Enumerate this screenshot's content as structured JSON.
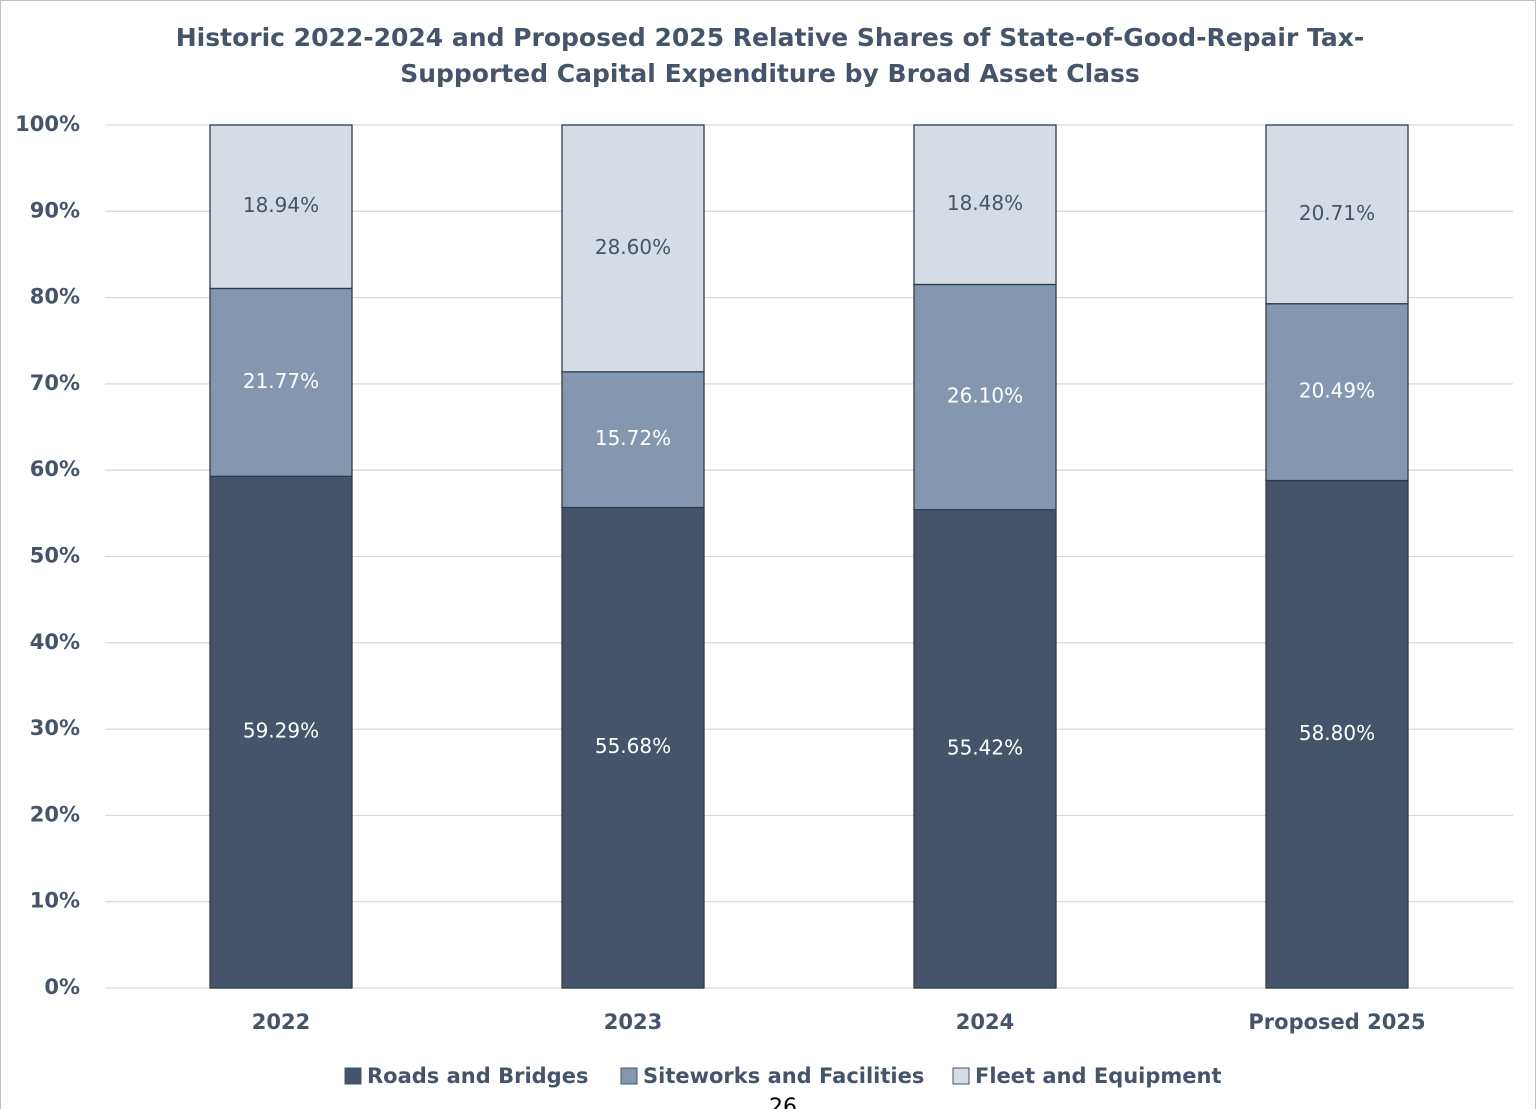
{
  "chart_data": {
    "type": "stacked_bar",
    "title": [
      "Historic 2022-2024 and Proposed 2025 Relative Shares of State-of-Good-Repair Tax-",
      "Supported Capital Expenditure by Broad Asset Class"
    ],
    "categories": [
      "2022",
      "2023",
      "2024",
      "Proposed 2025"
    ],
    "series": [
      {
        "name": "Roads and Bridges",
        "color": "#44546a",
        "label_color": "#ffffff",
        "values": [
          59.29,
          55.68,
          55.42,
          58.8
        ],
        "value_labels": [
          "59.29%",
          "55.68%",
          "55.42%",
          "58.80%"
        ]
      },
      {
        "name": "Siteworks and Facilities",
        "color": "#8497b0",
        "label_color": "#ffffff",
        "values": [
          21.77,
          15.72,
          26.1,
          20.49
        ],
        "value_labels": [
          "21.77%",
          "15.72%",
          "26.10%",
          "20.49%"
        ]
      },
      {
        "name": "Fleet and Equipment",
        "color": "#d6dce5",
        "label_color": "#44546a",
        "values": [
          18.94,
          28.6,
          18.48,
          20.71
        ],
        "value_labels": [
          "18.94%",
          "28.60%",
          "18.48%",
          "20.71%"
        ]
      }
    ],
    "ylim": [
      0,
      100
    ],
    "yticks": [
      {
        "value": 0,
        "label": "0%"
      },
      {
        "value": 10,
        "label": "10%"
      },
      {
        "value": 20,
        "label": "20%"
      },
      {
        "value": 30,
        "label": "30%"
      },
      {
        "value": 40,
        "label": "40%"
      },
      {
        "value": 50,
        "label": "50%"
      },
      {
        "value": 60,
        "label": "60%"
      },
      {
        "value": 70,
        "label": "70%"
      },
      {
        "value": 80,
        "label": "80%"
      },
      {
        "value": 90,
        "label": "90%"
      },
      {
        "value": 100,
        "label": "100%"
      }
    ],
    "grid": true,
    "legend": "bottom"
  },
  "page_number": "26"
}
